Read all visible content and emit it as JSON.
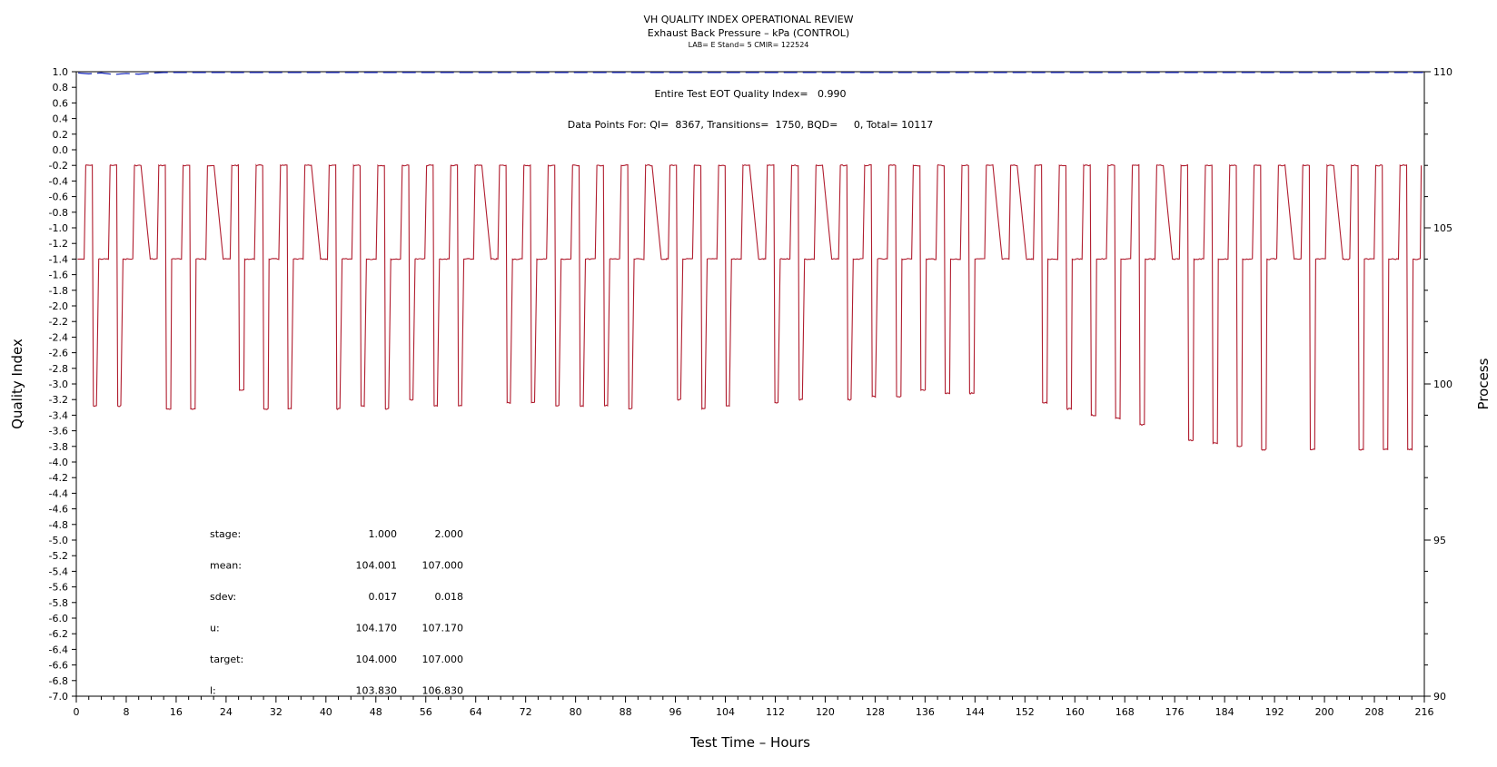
{
  "chart_data": {
    "type": "line",
    "title": "VH QUALITY INDEX OPERATIONAL REVIEW",
    "subtitle": "Exhaust Back Pressure – kPa (CONTROL)",
    "subtitle2": "LAB= E Stand= 5 CMIR= 122524",
    "xlabel": "Test Time – Hours",
    "ylabel": "Quality Index",
    "y2label": "Process",
    "xlim": [
      0,
      216
    ],
    "ylim": [
      -7.0,
      1.0
    ],
    "y2lim": [
      90,
      110
    ],
    "x_ticks": [
      "0",
      "8",
      "16",
      "24",
      "32",
      "40",
      "48",
      "56",
      "64",
      "72",
      "80",
      "88",
      "96",
      "104",
      "112",
      "120",
      "128",
      "136",
      "144",
      "152",
      "160",
      "168",
      "176",
      "184",
      "192",
      "200",
      "208",
      "216"
    ],
    "y_ticks": [
      "1.0",
      "0.8",
      "0.6",
      "0.4",
      "0.2",
      "0.0",
      "-0.2",
      "-0.4",
      "-0.6",
      "-0.8",
      "-1.0",
      "-1.2",
      "-1.4",
      "-1.6",
      "-1.8",
      "-2.0",
      "-2.2",
      "-2.4",
      "-2.6",
      "-2.8",
      "-3.0",
      "-3.2",
      "-3.4",
      "-3.6",
      "-3.8",
      "-4.0",
      "-4.2",
      "-4.4",
      "-4.6",
      "-4.8",
      "-5.0",
      "-5.2",
      "-5.4",
      "-5.6",
      "-5.8",
      "-6.0",
      "-6.2",
      "-6.4",
      "-6.6",
      "-6.8",
      "-7.0"
    ],
    "y2_ticks": [
      "110",
      "105",
      "100",
      "95",
      "90"
    ],
    "annotations": {
      "eot": "Entire Test EOT Quality Index=   0.990",
      "points": "Data Points For: QI=  8367, Transitions=  1750, BQD=     0, Total= 10117"
    },
    "quality_index_series": {
      "name": "Quality Index",
      "color": "#1f2fbf",
      "style": "dashed",
      "value": 0.99
    },
    "process_series": {
      "name": "Process",
      "color": "#b01c2e",
      "low_level": 104.0,
      "high_level": 107.0,
      "cycle_hours": 3.9,
      "start_hour": 1.0,
      "end_hour": 215.5,
      "dip_minima": [
        99.3,
        99.3,
        99.2,
        99.2,
        99.2,
        99.2,
        99.8,
        99.2,
        99.2,
        99.2,
        99.2,
        99.3,
        99.2,
        99.5,
        99.3,
        99.3,
        99.2,
        99.4,
        99.4,
        99.3,
        99.3,
        99.3,
        99.2,
        99.4,
        99.5,
        99.2,
        99.3,
        99.5,
        99.4,
        99.5,
        99.4,
        99.5,
        99.6,
        99.6,
        99.8,
        99.7,
        99.7,
        99.6,
        99.6,
        99.4,
        99.2,
        99.0,
        98.9,
        98.7,
        98.4,
        98.2,
        98.1,
        98.0,
        97.9,
        97.9,
        97.9,
        97.9,
        97.9,
        97.9,
        97.9
      ]
    },
    "stats_table": {
      "rows": [
        {
          "label": "stage:",
          "v1": "1.000",
          "v2": "2.000"
        },
        {
          "label": "mean:",
          "v1": "104.001",
          "v2": "107.000"
        },
        {
          "label": "sdev:",
          "v1": "0.017",
          "v2": "0.018"
        },
        {
          "label": "u:",
          "v1": "104.170",
          "v2": "107.170"
        },
        {
          "label": "target:",
          "v1": "104.000",
          "v2": "107.000"
        },
        {
          "label": "l:",
          "v1": "103.830",
          "v2": "106.830"
        }
      ]
    },
    "grid": false,
    "legend": "none"
  }
}
